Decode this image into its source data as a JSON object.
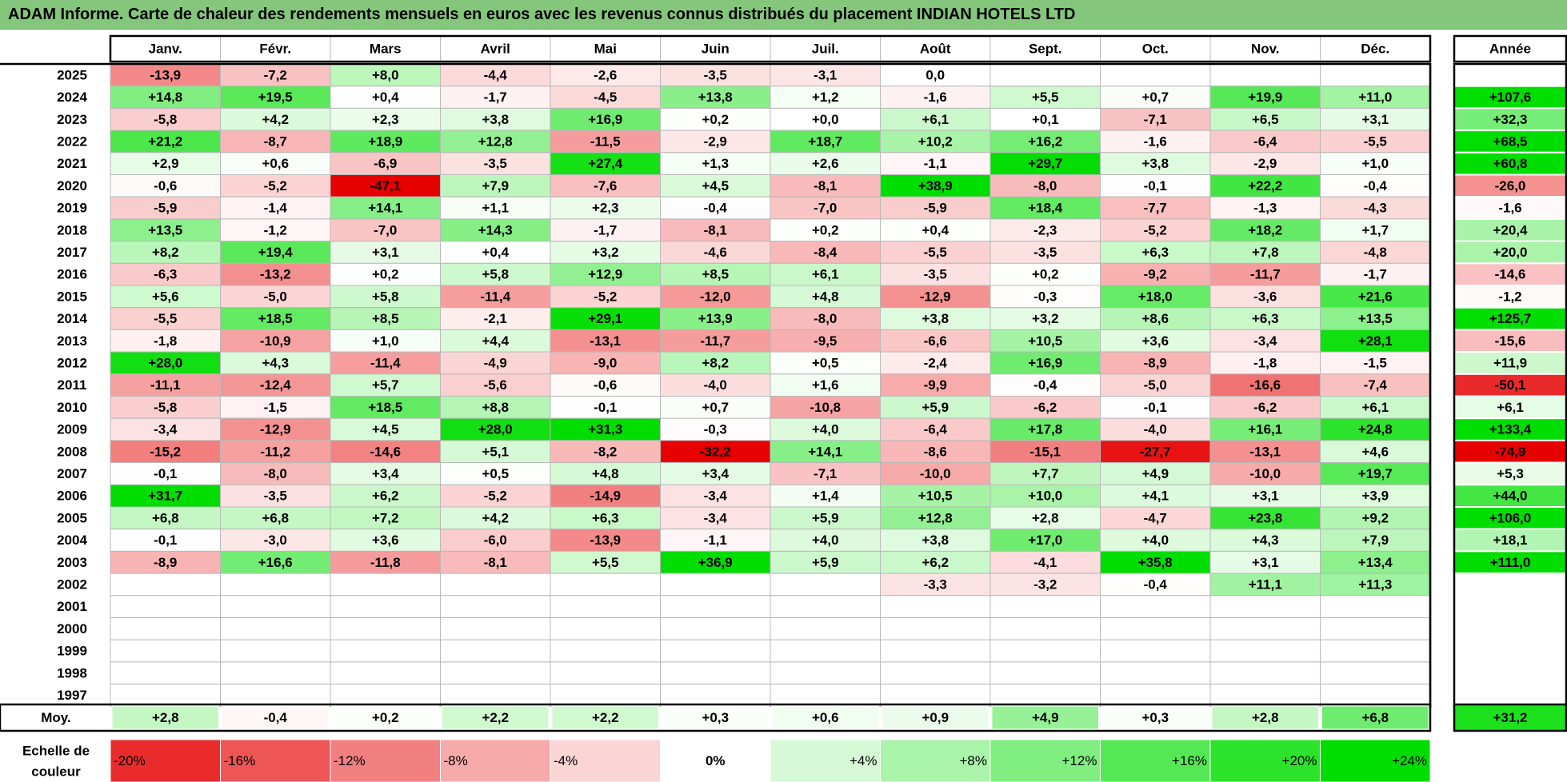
{
  "title": "ADAM Informe. Carte de chaleur des rendements mensuels en euros avec les revenus connus distribués du placement INDIAN HOTELS LTD",
  "colors": {
    "negative_max": "#e60000",
    "neutral": "#ffffff",
    "positive_max": "#00dd00",
    "title_bg": "#84c77c",
    "grid": "#b8b8b8"
  },
  "chart_data": {
    "type": "heatmap",
    "months": [
      "Janv.",
      "Févr.",
      "Mars",
      "Avril",
      "Mai",
      "Juin",
      "Juil.",
      "Août",
      "Sept.",
      "Oct.",
      "Nov.",
      "Déc."
    ],
    "year_header": "Année",
    "rows": [
      {
        "year": "2025",
        "values": [
          "-13,9",
          "-7,2",
          "+8,0",
          "-4,4",
          "-2,6",
          "-3,5",
          "-3,1",
          "0,0",
          "",
          "",
          "",
          ""
        ],
        "annual": ""
      },
      {
        "year": "2024",
        "values": [
          "+14,8",
          "+19,5",
          "+0,4",
          "-1,7",
          "-4,5",
          "+13,8",
          "+1,2",
          "-1,6",
          "+5,5",
          "+0,7",
          "+19,9",
          "+11,0"
        ],
        "annual": "+107,6"
      },
      {
        "year": "2023",
        "values": [
          "-5,8",
          "+4,2",
          "+2,3",
          "+3,8",
          "+16,9",
          "+0,2",
          "+0,0",
          "+6,1",
          "+0,1",
          "-7,1",
          "+6,5",
          "+3,1"
        ],
        "annual": "+32,3"
      },
      {
        "year": "2022",
        "values": [
          "+21,2",
          "-8,7",
          "+18,9",
          "+12,8",
          "-11,5",
          "-2,9",
          "+18,7",
          "+10,2",
          "+16,2",
          "-1,6",
          "-6,4",
          "-5,5"
        ],
        "annual": "+68,5"
      },
      {
        "year": "2021",
        "values": [
          "+2,9",
          "+0,6",
          "-6,9",
          "-3,5",
          "+27,4",
          "+1,3",
          "+2,6",
          "-1,1",
          "+29,7",
          "+3,8",
          "-2,9",
          "+1,0"
        ],
        "annual": "+60,8"
      },
      {
        "year": "2020",
        "values": [
          "-0,6",
          "-5,2",
          "-47,1",
          "+7,9",
          "-7,6",
          "+4,5",
          "-8,1",
          "+38,9",
          "-8,0",
          "-0,1",
          "+22,2",
          "-0,4"
        ],
        "annual": "-26,0"
      },
      {
        "year": "2019",
        "values": [
          "-5,9",
          "-1,4",
          "+14,1",
          "+1,1",
          "+2,3",
          "-0,4",
          "-7,0",
          "-5,9",
          "+18,4",
          "-7,7",
          "-1,3",
          "-4,3"
        ],
        "annual": "-1,6"
      },
      {
        "year": "2018",
        "values": [
          "+13,5",
          "-1,2",
          "-7,0",
          "+14,3",
          "-1,7",
          "-8,1",
          "+0,2",
          "+0,4",
          "-2,3",
          "-5,2",
          "+18,2",
          "+1,7"
        ],
        "annual": "+20,4"
      },
      {
        "year": "2017",
        "values": [
          "+8,2",
          "+19,4",
          "+3,1",
          "+0,4",
          "+3,2",
          "-4,6",
          "-8,4",
          "-5,5",
          "-3,5",
          "+6,3",
          "+7,8",
          "-4,8"
        ],
        "annual": "+20,0"
      },
      {
        "year": "2016",
        "values": [
          "-6,3",
          "-13,2",
          "+0,2",
          "+5,8",
          "+12,9",
          "+8,5",
          "+6,1",
          "-3,5",
          "+0,2",
          "-9,2",
          "-11,7",
          "-1,7"
        ],
        "annual": "-14,6"
      },
      {
        "year": "2015",
        "values": [
          "+5,6",
          "-5,0",
          "+5,8",
          "-11,4",
          "-5,2",
          "-12,0",
          "+4,8",
          "-12,9",
          "-0,3",
          "+18,0",
          "-3,6",
          "+21,6"
        ],
        "annual": "-1,2"
      },
      {
        "year": "2014",
        "values": [
          "-5,5",
          "+18,5",
          "+8,5",
          "-2,1",
          "+29,1",
          "+13,9",
          "-8,0",
          "+3,8",
          "+3,2",
          "+8,6",
          "+6,3",
          "+13,5"
        ],
        "annual": "+125,7"
      },
      {
        "year": "2013",
        "values": [
          "-1,8",
          "-10,9",
          "+1,0",
          "+4,4",
          "-13,1",
          "-11,7",
          "-9,5",
          "-6,6",
          "+10,5",
          "+3,6",
          "-3,4",
          "+28,1"
        ],
        "annual": "-15,6"
      },
      {
        "year": "2012",
        "values": [
          "+28,0",
          "+4,3",
          "-11,4",
          "-4,9",
          "-9,0",
          "+8,2",
          "+0,5",
          "-2,4",
          "+16,9",
          "-8,9",
          "-1,8",
          "-1,5"
        ],
        "annual": "+11,9"
      },
      {
        "year": "2011",
        "values": [
          "-11,1",
          "-12,4",
          "+5,7",
          "-5,6",
          "-0,6",
          "-4,0",
          "+1,6",
          "-9,9",
          "-0,4",
          "-5,0",
          "-16,6",
          "-7,4"
        ],
        "annual": "-50,1"
      },
      {
        "year": "2010",
        "values": [
          "-5,8",
          "-1,5",
          "+18,5",
          "+8,8",
          "-0,1",
          "+0,7",
          "-10,8",
          "+5,9",
          "-6,2",
          "-0,1",
          "-6,2",
          "+6,1"
        ],
        "annual": "+6,1"
      },
      {
        "year": "2009",
        "values": [
          "-3,4",
          "-12,9",
          "+4,5",
          "+28,0",
          "+31,3",
          "-0,3",
          "+4,0",
          "-6,4",
          "+17,8",
          "-4,0",
          "+16,1",
          "+24,8"
        ],
        "annual": "+133,4"
      },
      {
        "year": "2008",
        "values": [
          "-15,2",
          "-11,2",
          "-14,6",
          "+5,1",
          "-8,2",
          "-32,2",
          "+14,1",
          "-8,6",
          "-15,1",
          "-27,7",
          "-13,1",
          "+4,6"
        ],
        "annual": "-74,9"
      },
      {
        "year": "2007",
        "values": [
          "-0,1",
          "-8,0",
          "+3,4",
          "+0,5",
          "+4,8",
          "+3,4",
          "-7,1",
          "-10,0",
          "+7,7",
          "+4,9",
          "-10,0",
          "+19,7"
        ],
        "annual": "+5,3"
      },
      {
        "year": "2006",
        "values": [
          "+31,7",
          "-3,5",
          "+6,2",
          "-5,2",
          "-14,9",
          "-3,4",
          "+1,4",
          "+10,5",
          "+10,0",
          "+4,1",
          "+3,1",
          "+3,9"
        ],
        "annual": "+44,0"
      },
      {
        "year": "2005",
        "values": [
          "+6,8",
          "+6,8",
          "+7,2",
          "+4,2",
          "+6,3",
          "-3,4",
          "+5,9",
          "+12,8",
          "+2,8",
          "-4,7",
          "+23,8",
          "+9,2"
        ],
        "annual": "+106,0"
      },
      {
        "year": "2004",
        "values": [
          "-0,1",
          "-3,0",
          "+3,6",
          "-6,0",
          "-13,9",
          "-1,1",
          "+4,0",
          "+3,8",
          "+17,0",
          "+4,0",
          "+4,3",
          "+7,9"
        ],
        "annual": "+18,1"
      },
      {
        "year": "2003",
        "values": [
          "-8,9",
          "+16,6",
          "-11,8",
          "-8,1",
          "+5,5",
          "+36,9",
          "+5,9",
          "+6,2",
          "-4,1",
          "+35,8",
          "+3,1",
          "+13,4"
        ],
        "annual": "+111,0"
      },
      {
        "year": "2002",
        "values": [
          "",
          "",
          "",
          "",
          "",
          "",
          "",
          "-3,3",
          "-3,2",
          "-0,4",
          "+11,1",
          "+11,3"
        ],
        "annual": ""
      },
      {
        "year": "2001",
        "values": [
          "",
          "",
          "",
          "",
          "",
          "",
          "",
          "",
          "",
          "",
          "",
          ""
        ],
        "annual": ""
      },
      {
        "year": "2000",
        "values": [
          "",
          "",
          "",
          "",
          "",
          "",
          "",
          "",
          "",
          "",
          "",
          ""
        ],
        "annual": ""
      },
      {
        "year": "1999",
        "values": [
          "",
          "",
          "",
          "",
          "",
          "",
          "",
          "",
          "",
          "",
          "",
          ""
        ],
        "annual": ""
      },
      {
        "year": "1998",
        "values": [
          "",
          "",
          "",
          "",
          "",
          "",
          "",
          "",
          "",
          "",
          "",
          ""
        ],
        "annual": ""
      },
      {
        "year": "1997",
        "values": [
          "",
          "",
          "",
          "",
          "",
          "",
          "",
          "",
          "",
          "",
          "",
          ""
        ],
        "annual": ""
      }
    ],
    "average": {
      "label": "Moy.",
      "values": [
        "+2,8",
        "-0,4",
        "+0,2",
        "+2,2",
        "+2,2",
        "+0,3",
        "+0,6",
        "+0,9",
        "+4,9",
        "+0,3",
        "+2,8",
        "+6,8"
      ],
      "annual": "+31,2"
    },
    "scale": {
      "label_line1": "Echelle de",
      "label_line2": "couleur",
      "steps": [
        "-20%",
        "-16%",
        "-12%",
        "-8%",
        "-4%",
        "0%",
        "+4%",
        "+8%",
        "+12%",
        "+16%",
        "+20%",
        "+24%"
      ]
    }
  }
}
